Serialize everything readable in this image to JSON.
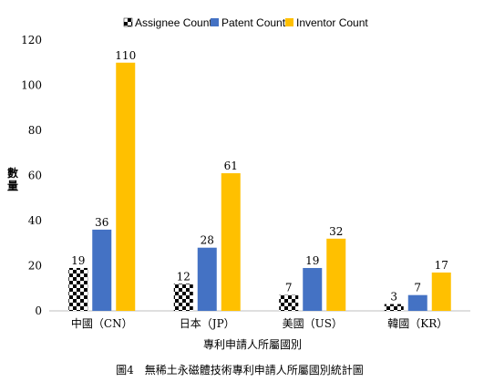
{
  "chart_data": {
    "type": "bar",
    "categories": [
      "中國（CN）",
      "日本（JP）",
      "美國（US）",
      "韓國（KR）"
    ],
    "series": [
      {
        "name": "Assignee Count",
        "values": [
          19,
          12,
          7,
          3
        ],
        "color": "#000000",
        "pattern": "checkerboard"
      },
      {
        "name": "Patent Count",
        "values": [
          36,
          28,
          19,
          7
        ],
        "color": "#4472C4"
      },
      {
        "name": "Inventor Count",
        "values": [
          110,
          61,
          32,
          17
        ],
        "color": "#FFC000"
      }
    ],
    "ylabel": "數量",
    "xlabel": "專利申請人所屬國別",
    "caption": "圖4　無稀土永磁體技術專利申請人所屬國別統計圖",
    "ylim": [
      0,
      120
    ],
    "yticks": [
      0,
      20,
      40,
      60,
      80,
      100,
      120
    ],
    "legend_position": "top-center",
    "grid": false
  }
}
